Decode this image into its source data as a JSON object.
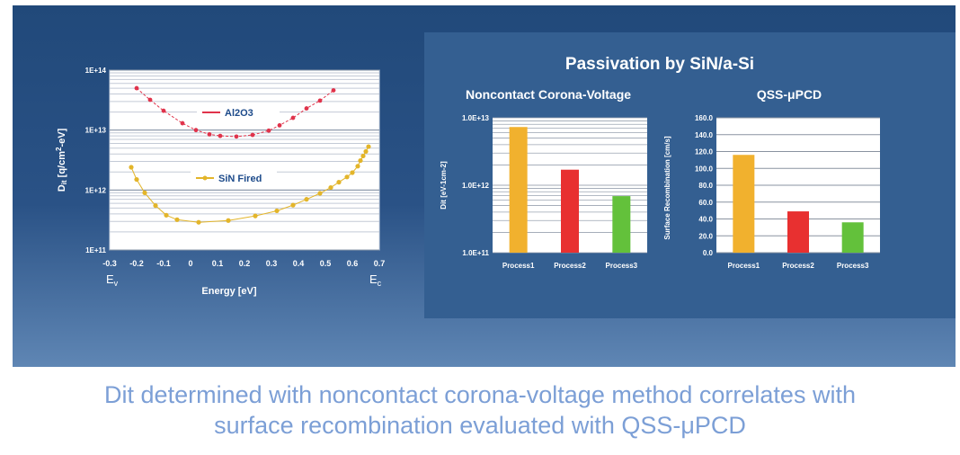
{
  "colors": {
    "slide_top": "#21497a",
    "slide_bottom": "#5f86b4",
    "panel": "#345f91",
    "red_series": "#e0334b",
    "yellow_series": "#e3b52a",
    "bar_yellow": "#f1b12e",
    "bar_red": "#e83030",
    "bar_green": "#63c13b",
    "caption": "#7c9fd6"
  },
  "caption": {
    "line1": "Dit determined with noncontact corona-voltage method correlates with",
    "line2": "surface recombination evaluated with QSS-μPCD"
  },
  "panel_title": "Passivation by SiN/a-Si",
  "left_chart": {
    "ylabel_main": "D",
    "ylabel_sub": "it",
    "ylabel_rest": " [q/cm",
    "ylabel_sup": "2",
    "ylabel_end": "-eV]",
    "xlabel": "Energy [eV]",
    "ev_main": "E",
    "ev_sub": "v",
    "ec_main": "E",
    "ec_sub": "c"
  },
  "chart_data": [
    {
      "type": "line",
      "scale_y": "log",
      "xlabel": "Energy [eV]",
      "ylabel": "Dit [q/cm2-eV]",
      "xlim": [
        -0.3,
        0.7
      ],
      "ylim": [
        100000000000.0,
        100000000000000.0
      ],
      "x_ticks": [
        "-0.3",
        "-0.2",
        "-0.1",
        "0",
        "0.1",
        "0.2",
        "0.3",
        "0.4",
        "0.5",
        "0.6",
        "0.7"
      ],
      "y_ticks": [
        "1E+11",
        "1E+12",
        "1E+13",
        "1E+14"
      ],
      "grid": true,
      "series": [
        {
          "name": "Al2O3",
          "color": "#e0334b",
          "x": [
            -0.2,
            -0.15,
            -0.1,
            -0.03,
            0.02,
            0.07,
            0.11,
            0.17,
            0.23,
            0.29,
            0.33,
            0.38,
            0.43,
            0.48,
            0.53
          ],
          "y": [
            50000000000000.0,
            32000000000000.0,
            21000000000000.0,
            13000000000000.0,
            10000000000000.0,
            8500000000000.0,
            8000000000000.0,
            7800000000000.0,
            8300000000000.0,
            9800000000000.0,
            12000000000000.0,
            16000000000000.0,
            23000000000000.0,
            31000000000000.0,
            46000000000000.0
          ]
        },
        {
          "name": "SiN Fired",
          "color": "#e3b52a",
          "x": [
            -0.22,
            -0.2,
            -0.17,
            -0.13,
            -0.09,
            -0.05,
            0.03,
            0.14,
            0.24,
            0.32,
            0.38,
            0.43,
            0.48,
            0.52,
            0.55,
            0.58,
            0.6,
            0.62,
            0.63,
            0.64,
            0.65,
            0.66
          ],
          "y": [
            2400000000000.0,
            1500000000000.0,
            900000000000.0,
            550000000000.0,
            380000000000.0,
            320000000000.0,
            290000000000.0,
            310000000000.0,
            370000000000.0,
            450000000000.0,
            560000000000.0,
            700000000000.0,
            880000000000.0,
            1100000000000.0,
            1350000000000.0,
            1650000000000.0,
            1950000000000.0,
            2500000000000.0,
            3100000000000.0,
            3700000000000.0,
            4400000000000.0,
            5300000000000.0
          ]
        }
      ]
    },
    {
      "type": "bar",
      "scale_y": "log",
      "title": "Noncontact Corona-Voltage",
      "ylabel": "Dit [eV-1cm-2]",
      "categories": [
        "Process1",
        "Process2",
        "Process3"
      ],
      "values": [
        7300000000000.0,
        1700000000000.0,
        690000000000.0
      ],
      "colors": [
        "#f1b12e",
        "#e83030",
        "#63c13b"
      ],
      "ylim": [
        100000000000.0,
        10000000000000.0
      ],
      "y_ticks": [
        "1.0E+11",
        "1.0E+12",
        "1.0E+13"
      ],
      "grid": true
    },
    {
      "type": "bar",
      "title": "QSS-μPCD",
      "ylabel": "Surface Recombination [cm/s]",
      "categories": [
        "Process1",
        "Process2",
        "Process3"
      ],
      "values": [
        116,
        49,
        36
      ],
      "colors": [
        "#f1b12e",
        "#e83030",
        "#63c13b"
      ],
      "ylim": [
        0,
        160
      ],
      "y_ticks": [
        "0.0",
        "20.0",
        "40.0",
        "60.0",
        "80.0",
        "100.0",
        "120.0",
        "140.0",
        "160.0"
      ],
      "grid": true
    }
  ]
}
